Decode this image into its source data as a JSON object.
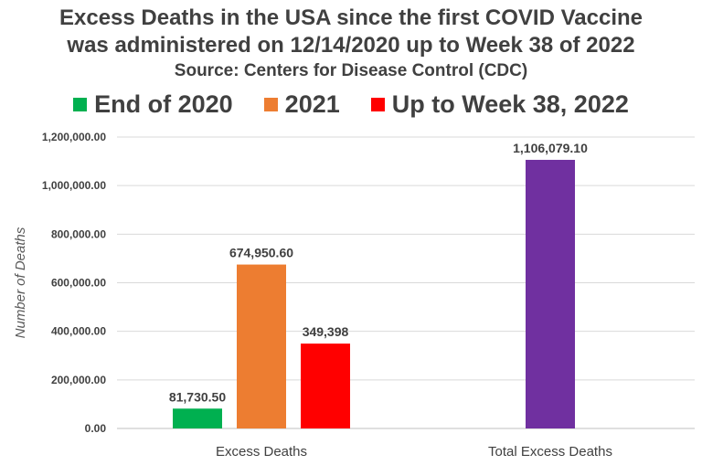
{
  "chart_data": {
    "type": "bar",
    "title_line1": "Excess Deaths in the USA since the first COVID Vaccine",
    "title_line2": "was administered on  12/14/2020 up to Week 38 of 2022",
    "subtitle": "Source: Centers for Disease Control (CDC)",
    "ylabel": "Number of Deaths",
    "xlabel": "",
    "ylim": [
      0,
      1200000
    ],
    "y_ticks": [
      "0.00",
      "200,000.00",
      "400,000.00",
      "600,000.00",
      "800,000.00",
      "1,000,000.00",
      "1,200,000.00"
    ],
    "grid": true,
    "legend_position": "top",
    "legend": [
      {
        "name": "End of 2020",
        "color": "#00b050"
      },
      {
        "name": "2021",
        "color": "#ed7d31"
      },
      {
        "name": "Up to Week 38, 2022",
        "color": "#ff0000"
      }
    ],
    "groups": [
      {
        "category": "Excess Deaths",
        "bars": [
          {
            "value": 81730.5,
            "label": "81,730.50",
            "color": "#00b050"
          },
          {
            "value": 674950.6,
            "label": "674,950.60",
            "color": "#ed7d31"
          },
          {
            "value": 349398,
            "label": "349,398",
            "color": "#ff0000"
          }
        ]
      },
      {
        "category": "Total Excess Deaths",
        "bars": [
          {
            "value": 1106079.1,
            "label": "1,106,079.10",
            "color": "#7030a0"
          }
        ]
      }
    ]
  }
}
